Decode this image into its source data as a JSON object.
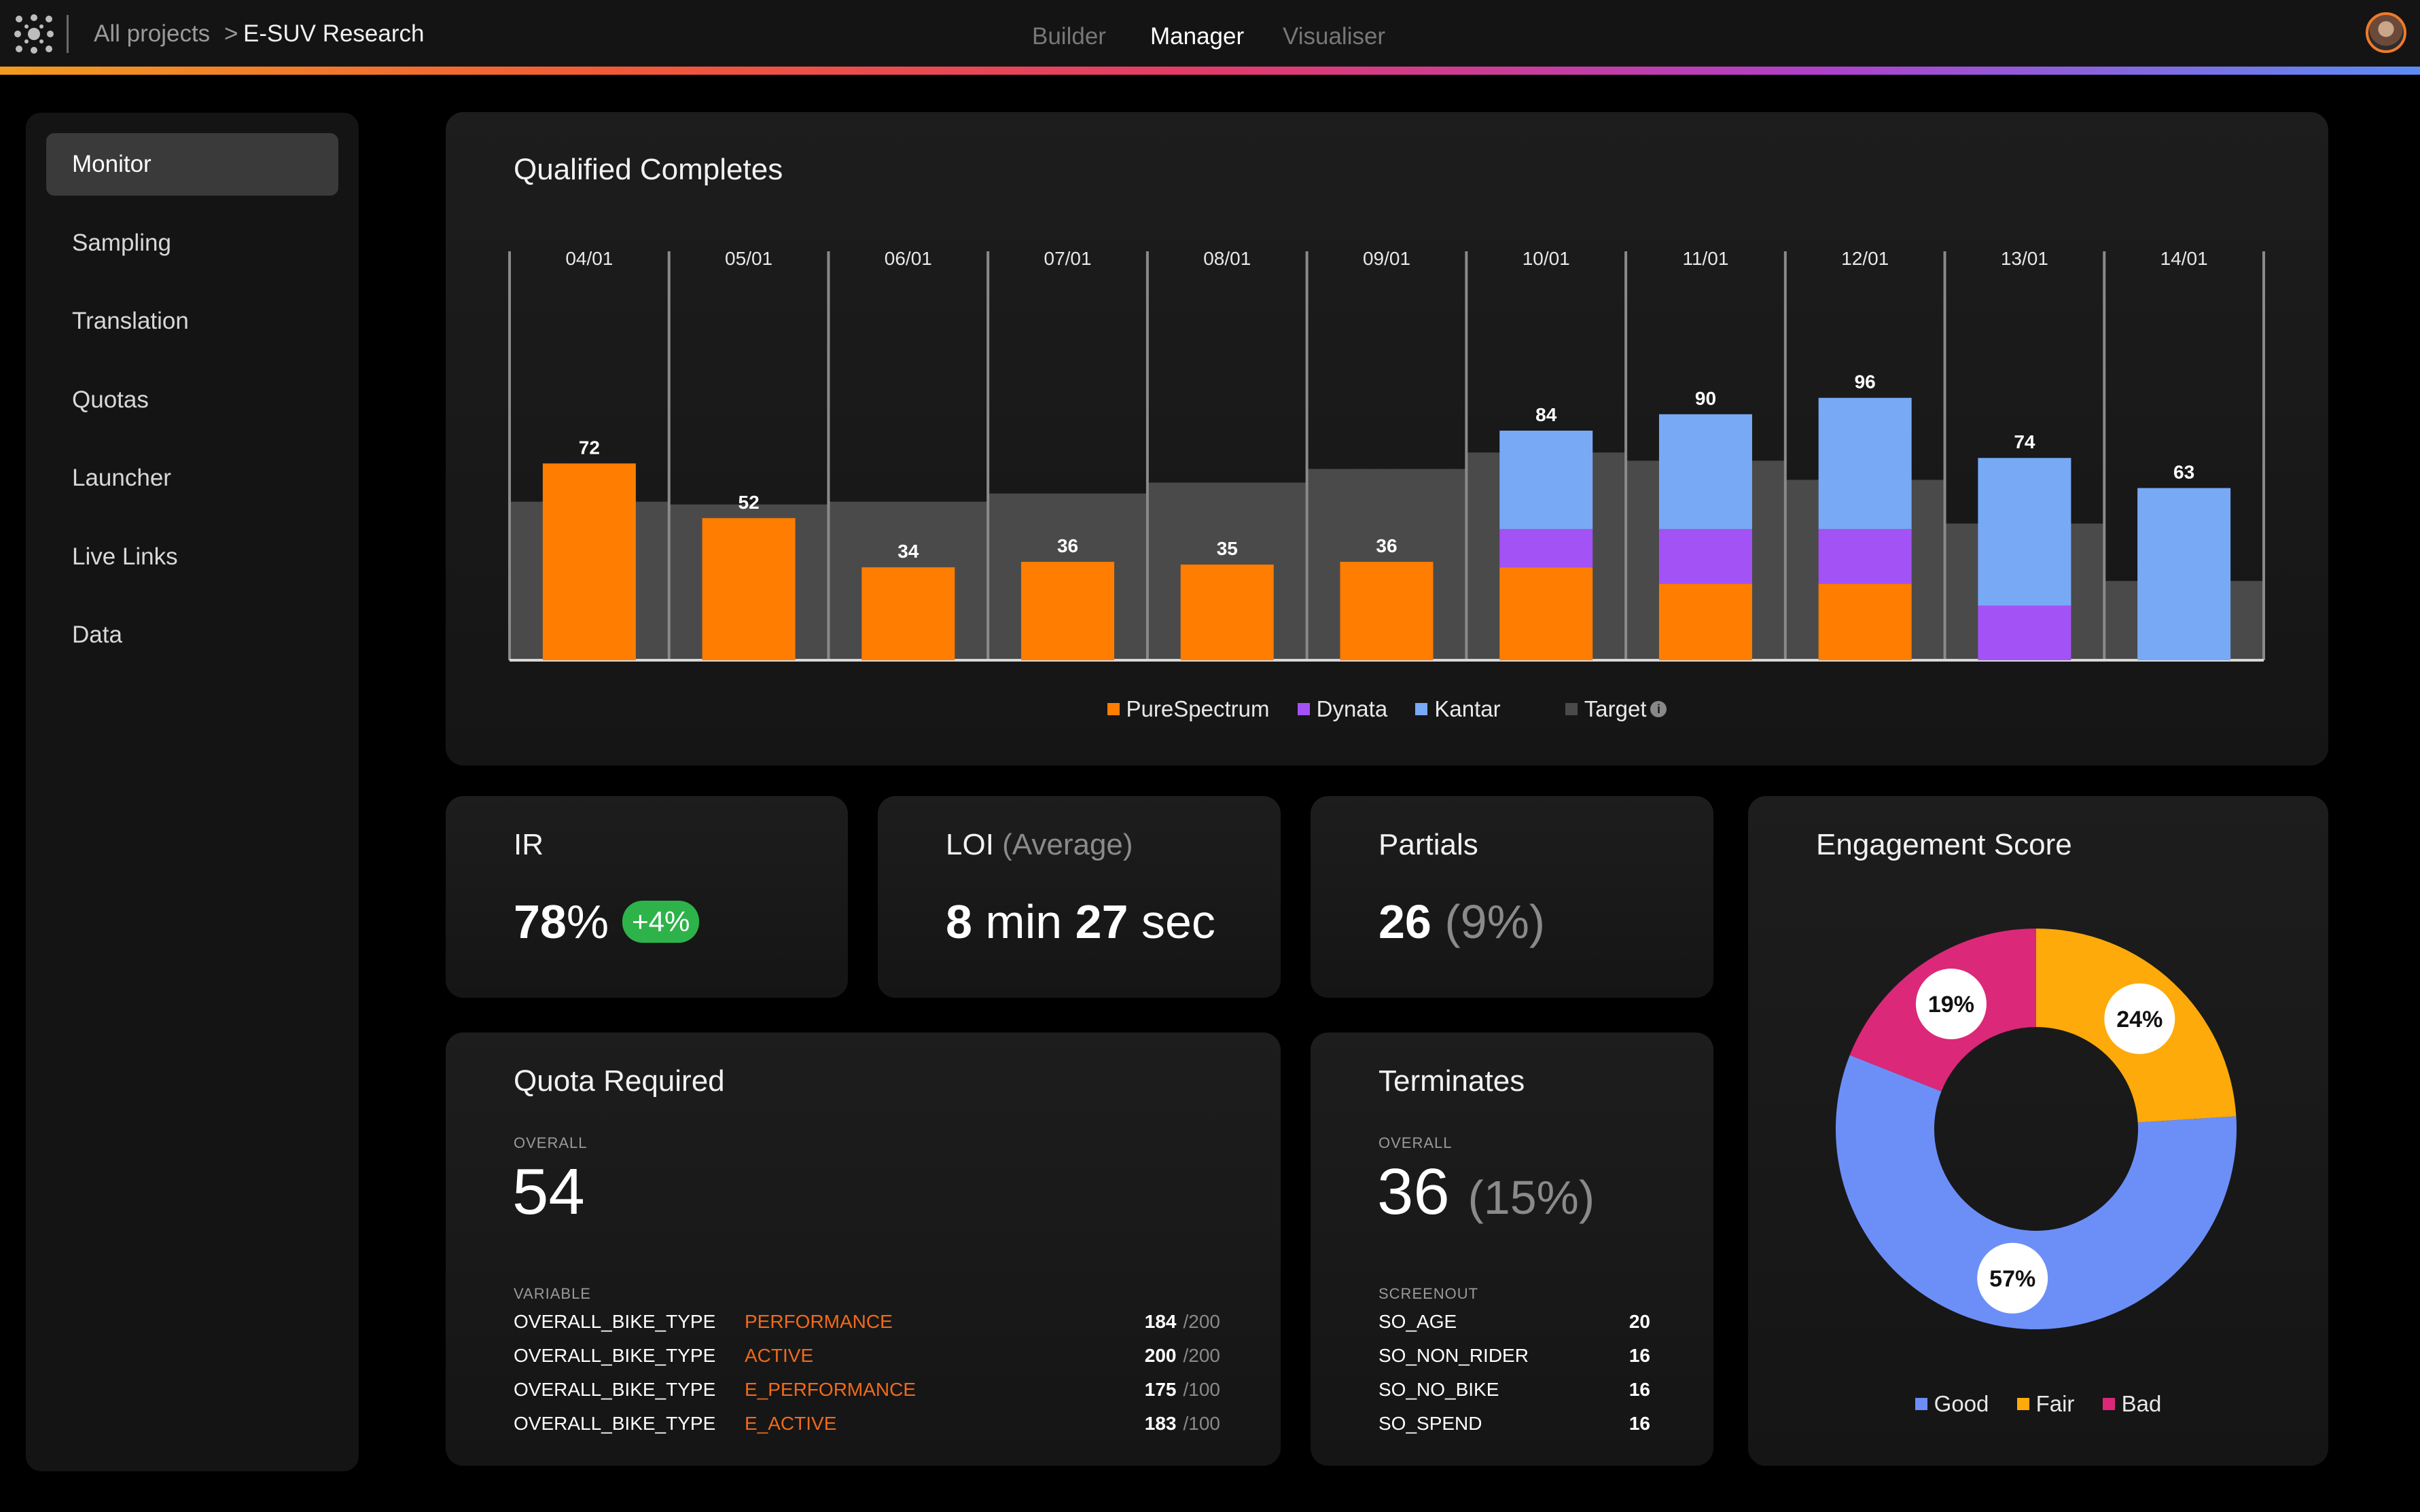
{
  "header": {
    "breadcrumb_root": "All projects",
    "breadcrumb_separator": ">",
    "breadcrumb_current": "E-SUV Research",
    "tabs": [
      {
        "label": "Builder",
        "active": false
      },
      {
        "label": "Manager",
        "active": true
      },
      {
        "label": "Visualiser",
        "active": false
      }
    ],
    "logo_icon": "grid-logo-icon",
    "avatar_icon": "user-avatar"
  },
  "sidebar": {
    "items": [
      {
        "label": "Monitor",
        "active": true
      },
      {
        "label": "Sampling",
        "active": false
      },
      {
        "label": "Translation",
        "active": false
      },
      {
        "label": "Quotas",
        "active": false
      },
      {
        "label": "Launcher",
        "active": false
      },
      {
        "label": "Live Links",
        "active": false
      },
      {
        "label": "Data",
        "active": false
      }
    ]
  },
  "colors": {
    "purespectrum": "#ff7d00",
    "dynata": "#a352f5",
    "kantar": "#78a9f5",
    "target": "#4a4a4a",
    "good": "#6c8ff7",
    "fair": "#fdaa0a",
    "bad": "#dc2878",
    "ir_badge": "#2db34a",
    "quota_value": "#f06a1c"
  },
  "chart_data": {
    "type": "bar",
    "stacked": true,
    "title": "Qualified Completes",
    "categories": [
      "04/01",
      "05/01",
      "06/01",
      "07/01",
      "08/01",
      "09/01",
      "10/01",
      "11/01",
      "12/01",
      "13/01",
      "14/01"
    ],
    "totals": [
      "72",
      "52",
      "34",
      "36",
      "35",
      "36",
      "84",
      "90",
      "96",
      "74",
      "63"
    ],
    "series": [
      {
        "name": "PureSpectrum",
        "values": [
          72,
          52,
          34,
          36,
          35,
          36,
          34,
          28,
          28,
          0,
          0
        ]
      },
      {
        "name": "Dynata",
        "values": [
          0,
          0,
          0,
          0,
          0,
          0,
          14,
          20,
          20,
          20,
          0
        ]
      },
      {
        "name": "Kantar",
        "values": [
          0,
          0,
          0,
          0,
          0,
          0,
          36,
          42,
          48,
          54,
          63
        ]
      }
    ],
    "target": {
      "name": "Target",
      "values": [
        58,
        57,
        58,
        61,
        65,
        70,
        76,
        73,
        66,
        50,
        29
      ]
    },
    "ylim": [
      0,
      126
    ],
    "grid": false,
    "legend_position": "bottom-center"
  },
  "ir": {
    "title": "IR",
    "value": "78",
    "unit": "%",
    "change": "+4%"
  },
  "loi": {
    "title": "LOI",
    "title_note": "(Average)",
    "minutes": "8",
    "min_unit": "min",
    "seconds": "27",
    "sec_unit": "sec"
  },
  "partials": {
    "title": "Partials",
    "value": "26",
    "percent": "(9%)"
  },
  "engagement": {
    "title": "Engagement Score",
    "chart_data": {
      "type": "pie",
      "donut": true,
      "slices": [
        {
          "name": "Fair",
          "value": 24,
          "label": "24%"
        },
        {
          "name": "Good",
          "value": 57,
          "label": "57%"
        },
        {
          "name": "Bad",
          "value": 19,
          "label": "19%"
        }
      ],
      "legend_position": "bottom-center"
    },
    "legend": [
      "Good",
      "Fair",
      "Bad"
    ]
  },
  "quota": {
    "title": "Quota Required",
    "overall_label": "OVERALL",
    "overall_value": "54",
    "variable_label": "VARIABLE",
    "rows": [
      {
        "variable": "OVERALL_BIKE_TYPE",
        "value": "PERFORMANCE",
        "count": "184",
        "total": "/200"
      },
      {
        "variable": "OVERALL_BIKE_TYPE",
        "value": "ACTIVE",
        "count": "200",
        "total": "/200"
      },
      {
        "variable": "OVERALL_BIKE_TYPE",
        "value": "E_PERFORMANCE",
        "count": "175",
        "total": "/100"
      },
      {
        "variable": "OVERALL_BIKE_TYPE",
        "value": "E_ACTIVE",
        "count": "183",
        "total": "/100"
      }
    ]
  },
  "terminates": {
    "title": "Terminates",
    "overall_label": "OVERALL",
    "overall_value": "36",
    "overall_percent": "(15%)",
    "screenout_label": "SCREENOUT",
    "rows": [
      {
        "name": "SO_AGE",
        "count": "20"
      },
      {
        "name": "SO_NON_RIDER",
        "count": "16"
      },
      {
        "name": "SO_NO_BIKE",
        "count": "16"
      },
      {
        "name": "SO_SPEND",
        "count": "16"
      }
    ]
  }
}
